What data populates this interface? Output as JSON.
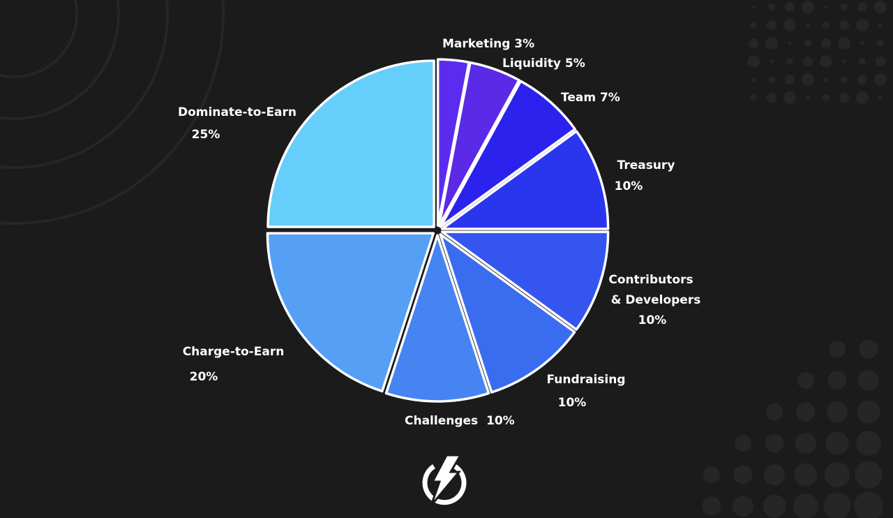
{
  "chart_data": {
    "type": "pie",
    "title": "",
    "start_angle": "top",
    "direction": "clockwise",
    "exploded": true,
    "slices": [
      {
        "name": "Marketing",
        "value": 3,
        "label": "Marketing 3%",
        "color": "#5b2cf0"
      },
      {
        "name": "Liquidity",
        "value": 5,
        "label": "Liquidity 5%",
        "color": "#5a2ae6"
      },
      {
        "name": "Team",
        "value": 7,
        "label": "Team 7%",
        "color": "#2c22ee"
      },
      {
        "name": "Treasury",
        "value": 10,
        "label": "Treasury",
        "label2": "10%",
        "color": "#2a36ee"
      },
      {
        "name": "Contributors & Developers",
        "value": 10,
        "label": "Contributors",
        "label1b": "& Developers",
        "label2": "10%",
        "color": "#3556ee"
      },
      {
        "name": "Fundraising",
        "value": 10,
        "label": "Fundraising",
        "label2": "10%",
        "color": "#3a6cf0"
      },
      {
        "name": "Challenges",
        "value": 10,
        "label": "Challenges  10%",
        "color": "#4684f2"
      },
      {
        "name": "Charge-to-Earn",
        "value": 20,
        "label": "Charge-to-Earn",
        "label2": "20%",
        "color": "#559ff5"
      },
      {
        "name": "Dominate-to-Earn",
        "value": 25,
        "label": "Dominate-to-Earn",
        "label2": "25%",
        "color": "#66cefa"
      }
    ]
  },
  "colors": {
    "background": "#1b1b1b",
    "slice_outline": "#ffffff"
  },
  "logo": {
    "icon": "lightning-bolt-in-circle"
  }
}
